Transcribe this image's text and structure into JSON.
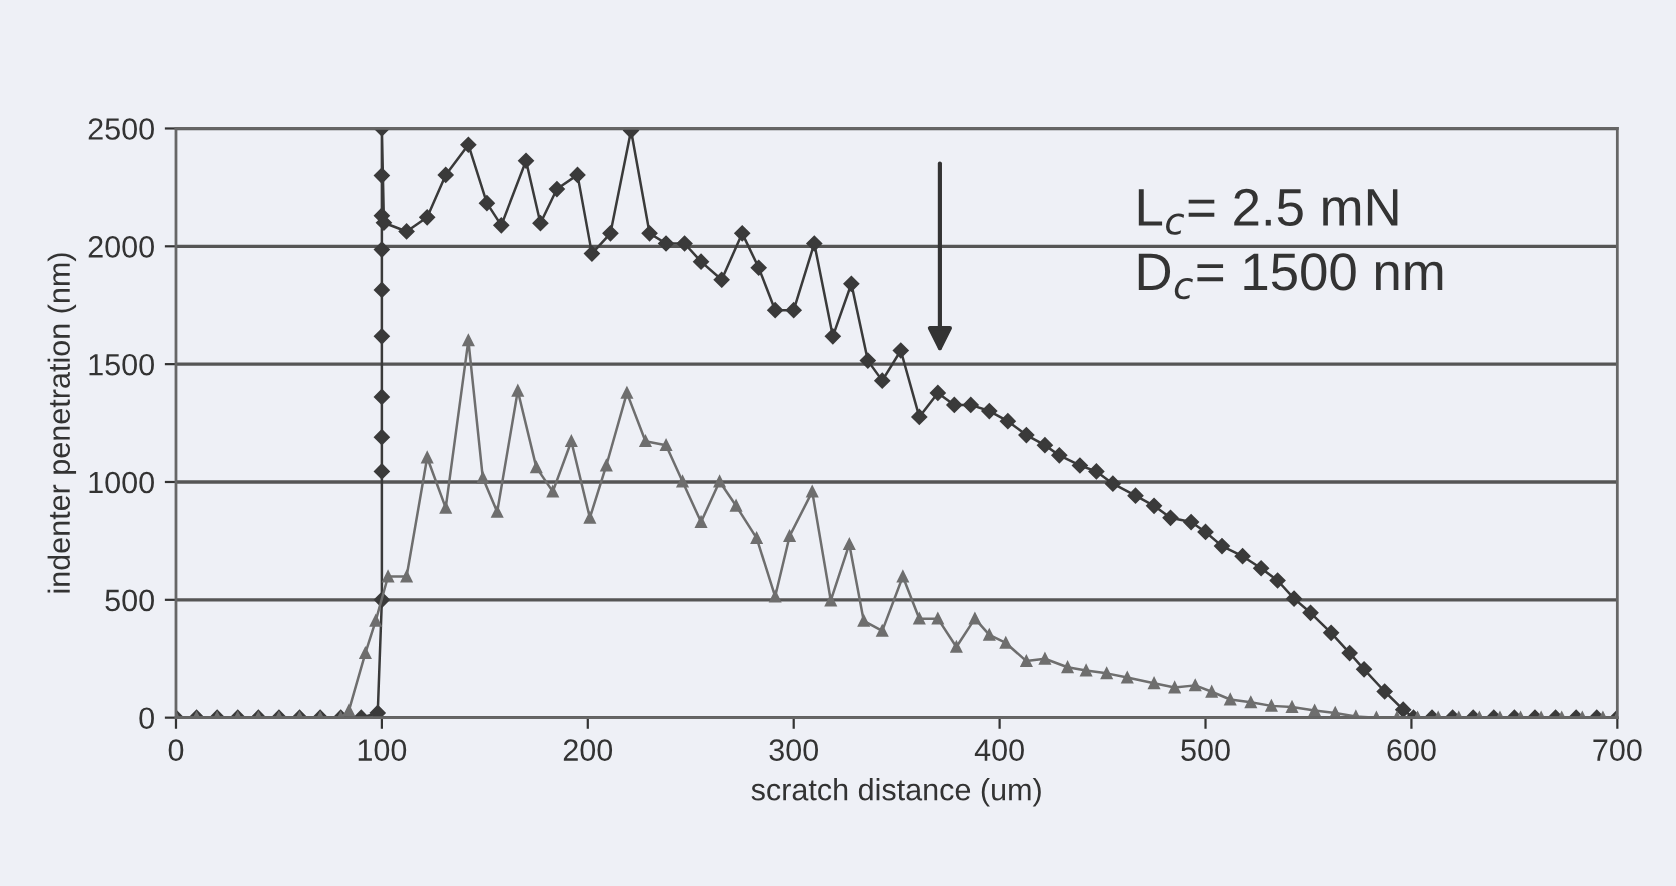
{
  "chart_data": {
    "type": "line",
    "xlabel": "scratch distance (um)",
    "ylabel": "indenter penetration (nm)",
    "xlim": [
      0,
      700
    ],
    "xticks": [
      0,
      100,
      200,
      300,
      400,
      500,
      600,
      700
    ],
    "ylim": [
      0,
      2500
    ],
    "yticks": [
      0,
      500,
      1000,
      1500,
      2000,
      2500
    ],
    "grid": "y",
    "line_style": "solid",
    "series": [
      {
        "color": "#3a3a3a",
        "marker": "diamond",
        "x": [
          0,
          10,
          20,
          30,
          40,
          50,
          60,
          70,
          80,
          90,
          98,
          100,
          100,
          100,
          100,
          100,
          100,
          100,
          100,
          100,
          100,
          101,
          112,
          122,
          131,
          142,
          151,
          158,
          170,
          177,
          185,
          195,
          202,
          211,
          221,
          230,
          238,
          247,
          255,
          265,
          275,
          283,
          291,
          300,
          310,
          319,
          328,
          336,
          343,
          352,
          361,
          370,
          378,
          386,
          395,
          404,
          413,
          422,
          429,
          439,
          447,
          455,
          466,
          475,
          483,
          493,
          500,
          508,
          518,
          527,
          535,
          543,
          551,
          561,
          570,
          577,
          587,
          596,
          601,
          610,
          620,
          630,
          640,
          650,
          660,
          670,
          680,
          690,
          700
        ],
        "values": [
          0,
          0,
          0,
          0,
          0,
          0,
          0,
          0,
          0,
          0,
          20,
          500,
          1045,
          1190,
          1361,
          1618,
          1815,
          1986,
          2130,
          2300,
          2500,
          2100,
          2063,
          2123,
          2303,
          2431,
          2183,
          2089,
          2363,
          2098,
          2243,
          2303,
          1969,
          2055,
          2491,
          2055,
          2012,
          2012,
          1935,
          1858,
          2055,
          1909,
          1729,
          1729,
          2012,
          1618,
          1841,
          1515,
          1430,
          1558,
          1276,
          1378,
          1327,
          1327,
          1301,
          1258,
          1199,
          1156,
          1113,
          1070,
          1045,
          993,
          942,
          899,
          848,
          830,
          788,
          728,
          685,
          634,
          582,
          505,
          445,
          360,
          274,
          205,
          111,
          34,
          0,
          0,
          0,
          0,
          0,
          0,
          0,
          0,
          0,
          0,
          0
        ]
      },
      {
        "color": "#6e6e6e",
        "marker": "triangle",
        "x": [
          0,
          10,
          20,
          30,
          40,
          50,
          60,
          70,
          80,
          84,
          92,
          97,
          103,
          112,
          122,
          131,
          142,
          149,
          156,
          166,
          175,
          183,
          192,
          201,
          209,
          219,
          228,
          238,
          246,
          255,
          264,
          272,
          282,
          291,
          298,
          309,
          318,
          327,
          334,
          343,
          353,
          361,
          370,
          379,
          388,
          395,
          403,
          413,
          422,
          433,
          442,
          452,
          462,
          475,
          485,
          495,
          503,
          512,
          522,
          532,
          542,
          553,
          563,
          573,
          583,
          593,
          603,
          613,
          623,
          633,
          643,
          653,
          663,
          673,
          683,
          693,
          700
        ],
        "values": [
          0,
          0,
          0,
          0,
          0,
          0,
          0,
          0,
          0,
          30,
          274,
          411,
          599,
          599,
          1104,
          890,
          1601,
          1018,
          873,
          1387,
          1062,
          959,
          1173,
          848,
          1070,
          1378,
          1173,
          1156,
          1002,
          830,
          1002,
          899,
          762,
          514,
          770,
          959,
          497,
          736,
          411,
          368,
          599,
          420,
          420,
          300,
          420,
          351,
          317,
          240,
          250,
          214,
          200,
          188,
          170,
          146,
          128,
          137,
          110,
          77,
          65,
          50,
          45,
          30,
          20,
          5,
          0,
          0,
          0,
          0,
          0,
          0,
          0,
          0,
          0,
          0,
          0,
          0,
          0
        ]
      }
    ],
    "annotations": [
      "L$_{c}$= 2.5 mN\nD$_{c}$= 1500 nm"
    ]
  }
}
